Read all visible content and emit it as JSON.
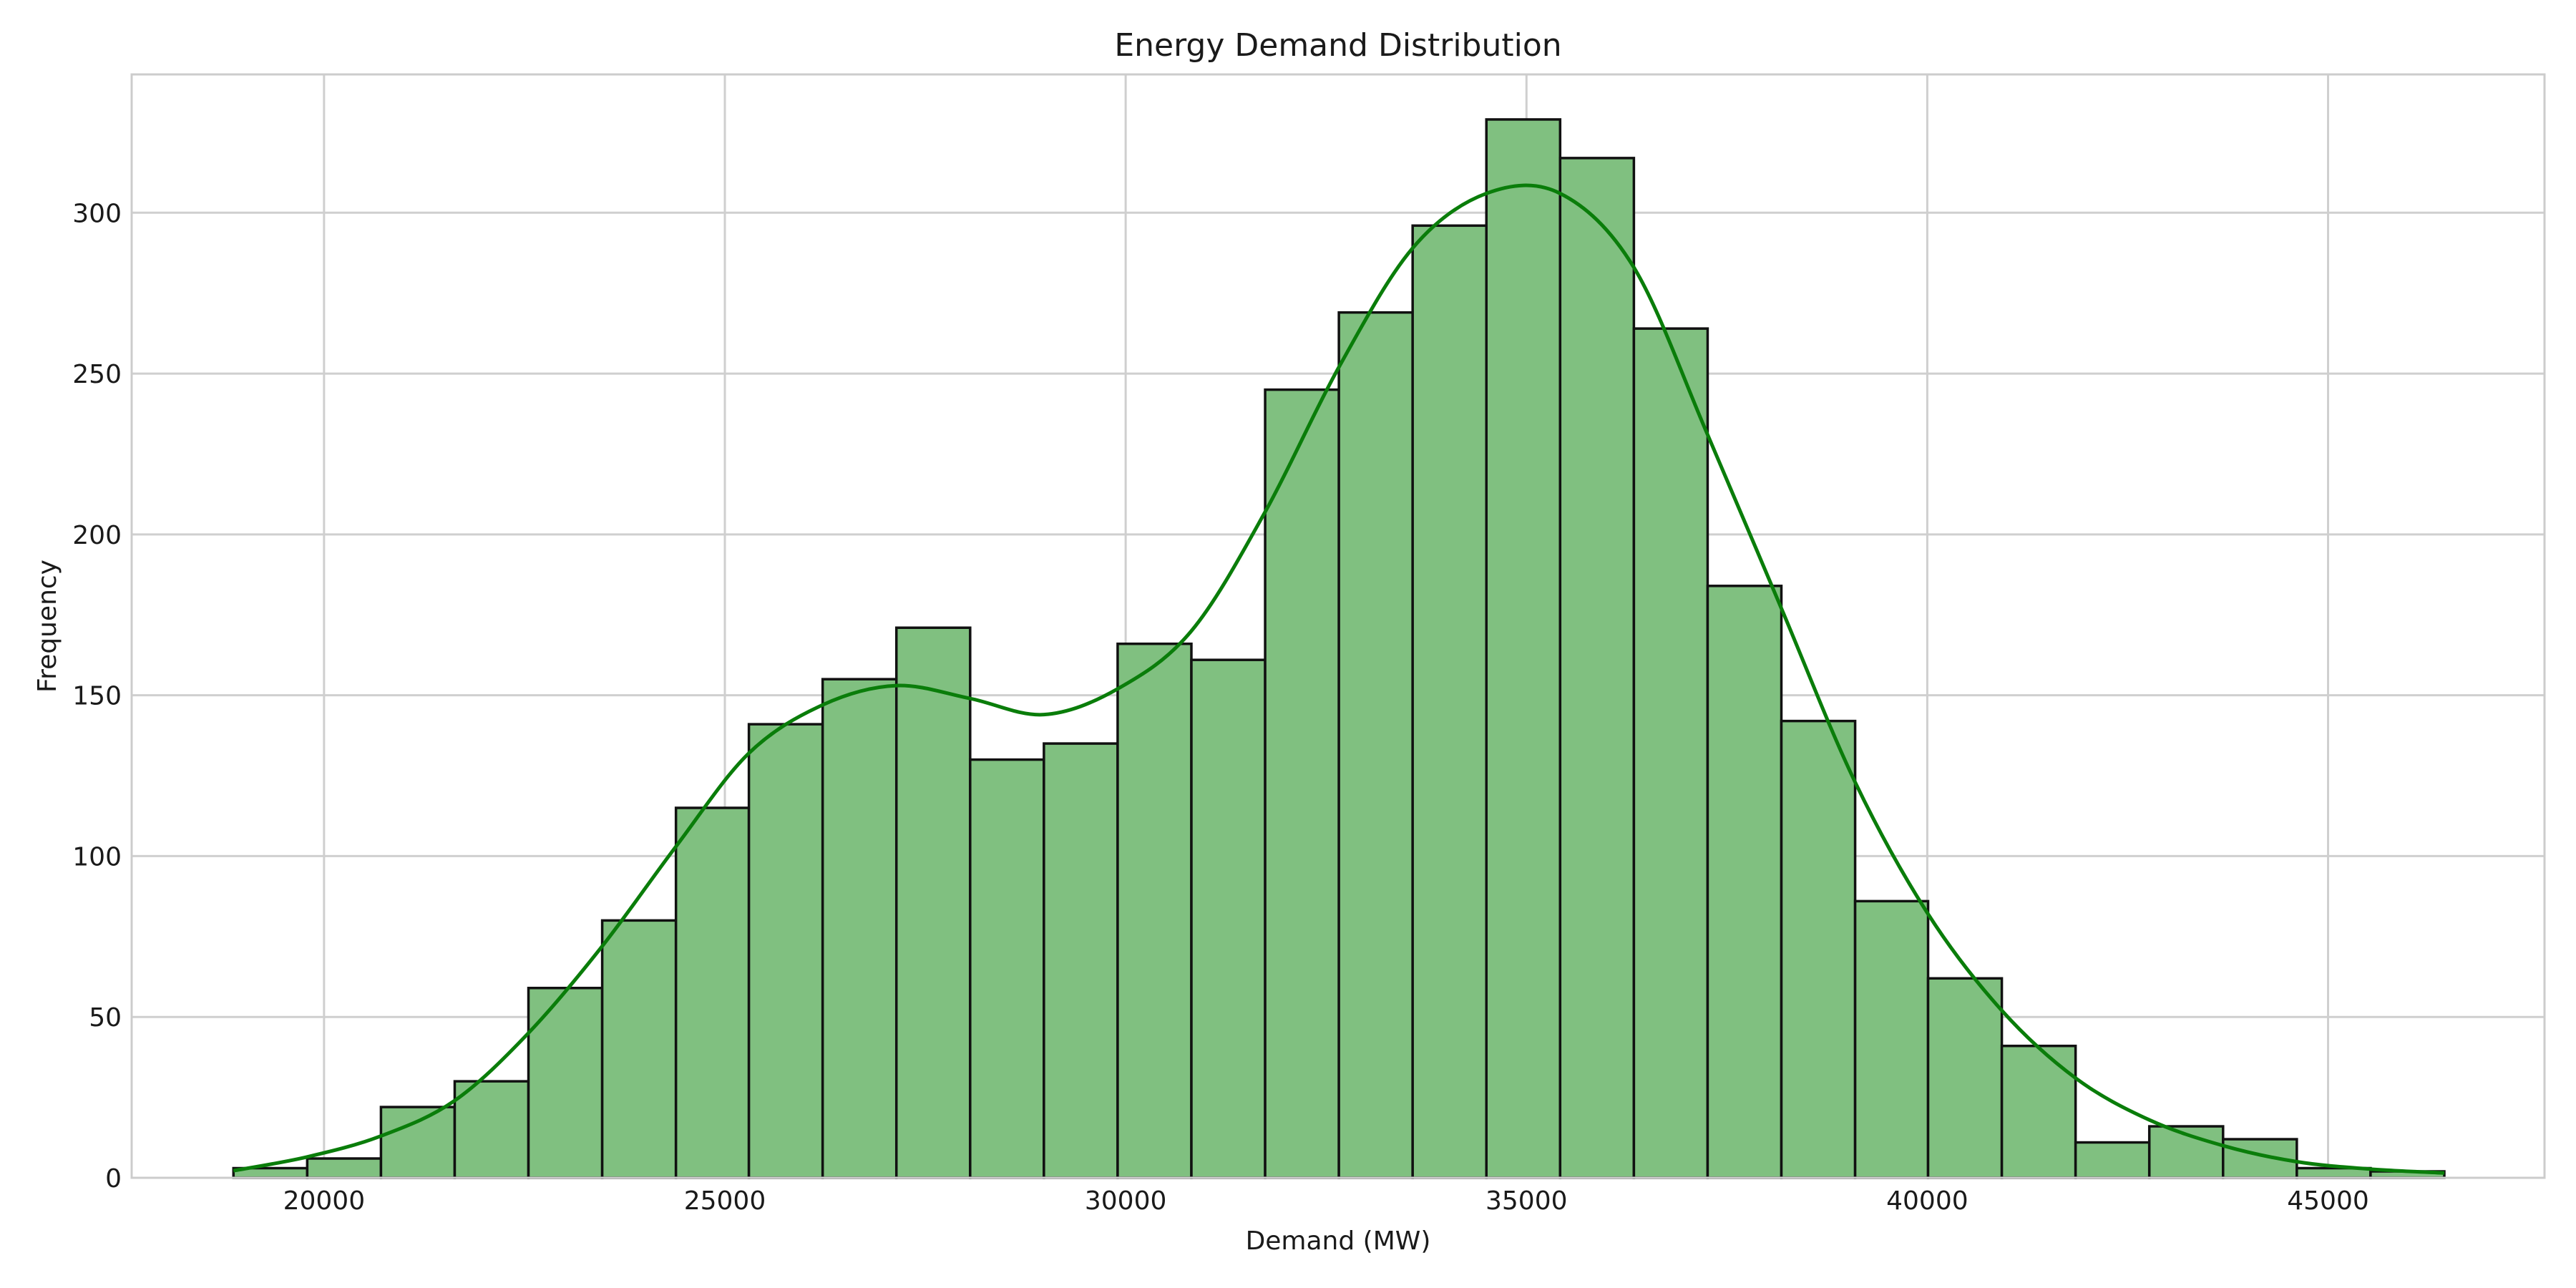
{
  "chart_data": {
    "type": "histogram",
    "title": "Energy Demand Distribution",
    "xlabel": "Demand (MW)",
    "ylabel": "Frequency",
    "xlim": [
      17600,
      47700
    ],
    "ylim": [
      0,
      343
    ],
    "x_ticks": [
      20000,
      25000,
      30000,
      35000,
      40000,
      45000
    ],
    "y_ticks": [
      0,
      50,
      100,
      150,
      200,
      250,
      300
    ],
    "grid": true,
    "bin_edges": [
      18870,
      19790,
      20710,
      21630,
      22550,
      23470,
      24390,
      25300,
      26220,
      27140,
      28060,
      28980,
      29900,
      30820,
      31740,
      32660,
      33580,
      34500,
      35420,
      36340,
      37260,
      38180,
      39100,
      40010,
      40930,
      41850,
      42770,
      43690,
      44610,
      45530,
      46450
    ],
    "values": [
      3,
      6,
      22,
      30,
      59,
      80,
      115,
      141,
      155,
      171,
      130,
      135,
      166,
      161,
      245,
      269,
      296,
      329,
      317,
      264,
      184,
      142,
      86,
      62,
      41,
      11,
      16,
      12,
      3,
      2
    ],
    "bar_color": "#80c080",
    "edge_color": "#111111",
    "kde": {
      "color": "#0a7d0a",
      "points": [
        [
          18870,
          2.2
        ],
        [
          19790,
          6.5
        ],
        [
          20710,
          13
        ],
        [
          21630,
          24
        ],
        [
          22550,
          45
        ],
        [
          23470,
          72
        ],
        [
          24390,
          103
        ],
        [
          25300,
          132
        ],
        [
          26220,
          147
        ],
        [
          27140,
          153
        ],
        [
          28060,
          149
        ],
        [
          28980,
          144
        ],
        [
          29900,
          152
        ],
        [
          30820,
          170
        ],
        [
          31740,
          207
        ],
        [
          32660,
          252
        ],
        [
          33580,
          289
        ],
        [
          34500,
          306
        ],
        [
          35420,
          306
        ],
        [
          36340,
          283
        ],
        [
          37260,
          231
        ],
        [
          38180,
          177
        ],
        [
          39100,
          123
        ],
        [
          40010,
          82
        ],
        [
          40930,
          52
        ],
        [
          41850,
          31
        ],
        [
          42770,
          18
        ],
        [
          43690,
          10
        ],
        [
          44610,
          5
        ],
        [
          45530,
          2.7
        ],
        [
          46450,
          1.5
        ]
      ]
    }
  }
}
